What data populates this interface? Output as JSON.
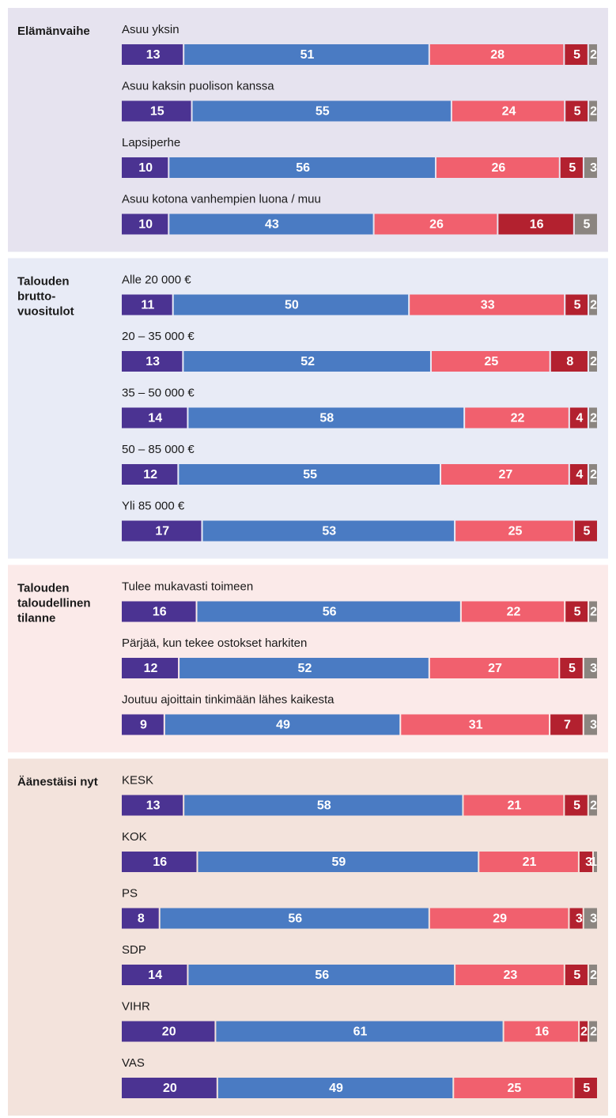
{
  "chart_data": {
    "type": "bar",
    "orientation": "horizontal",
    "stacked": true,
    "colors": [
      "#4b3392",
      "#4a7bc3",
      "#f1606e",
      "#b3212f",
      "#8b8580"
    ],
    "groups": [
      {
        "title": [
          "Elämänvaihe"
        ],
        "background": "#e6e3ef",
        "rows": [
          {
            "label": "Asuu yksin",
            "values": [
              13,
              51,
              28,
              5,
              2
            ]
          },
          {
            "label": "Asuu kaksin puolison kanssa",
            "values": [
              15,
              55,
              24,
              5,
              2
            ]
          },
          {
            "label": "Lapsiperhe",
            "values": [
              10,
              56,
              26,
              5,
              3
            ]
          },
          {
            "label": "Asuu kotona vanhempien luona / muu",
            "values": [
              10,
              43,
              26,
              16,
              5
            ]
          }
        ]
      },
      {
        "title": [
          "Talouden",
          "brutto-",
          "vuositulot"
        ],
        "background": "#e8ebf6",
        "rows": [
          {
            "label": "Alle 20 000 €",
            "values": [
              11,
              50,
              33,
              5,
              2
            ]
          },
          {
            "label": "20 – 35 000 €",
            "values": [
              13,
              52,
              25,
              8,
              2
            ]
          },
          {
            "label": "35 – 50 000 €",
            "values": [
              14,
              58,
              22,
              4,
              2
            ]
          },
          {
            "label": "50 – 85 000 €",
            "values": [
              12,
              55,
              27,
              4,
              2
            ]
          },
          {
            "label": "Yli 85 000 €",
            "values": [
              17,
              53,
              25,
              5
            ]
          }
        ]
      },
      {
        "title": [
          "Talouden",
          "taloudellinen",
          "tilanne"
        ],
        "background": "#fbeae9",
        "rows": [
          {
            "label": "Tulee mukavasti toimeen",
            "values": [
              16,
              56,
              22,
              5,
              2
            ]
          },
          {
            "label": "Pärjää, kun tekee ostokset harkiten",
            "values": [
              12,
              52,
              27,
              5,
              3
            ]
          },
          {
            "label": "Joutuu ajoittain tinkimään lähes kaikesta",
            "values": [
              9,
              49,
              31,
              7,
              3
            ]
          }
        ]
      },
      {
        "title": [
          "Äänestäisi nyt"
        ],
        "background": "#f3e3dc",
        "rows": [
          {
            "label": "KESK",
            "values": [
              13,
              58,
              21,
              5,
              2
            ]
          },
          {
            "label": "KOK",
            "values": [
              16,
              59,
              21,
              3,
              1
            ]
          },
          {
            "label": "PS",
            "values": [
              8,
              56,
              29,
              3,
              3
            ]
          },
          {
            "label": "SDP",
            "values": [
              14,
              56,
              23,
              5,
              2
            ]
          },
          {
            "label": "VIHR",
            "values": [
              20,
              61,
              16,
              2,
              2
            ]
          },
          {
            "label": "VAS",
            "values": [
              20,
              49,
              25,
              5
            ]
          }
        ]
      }
    ]
  }
}
